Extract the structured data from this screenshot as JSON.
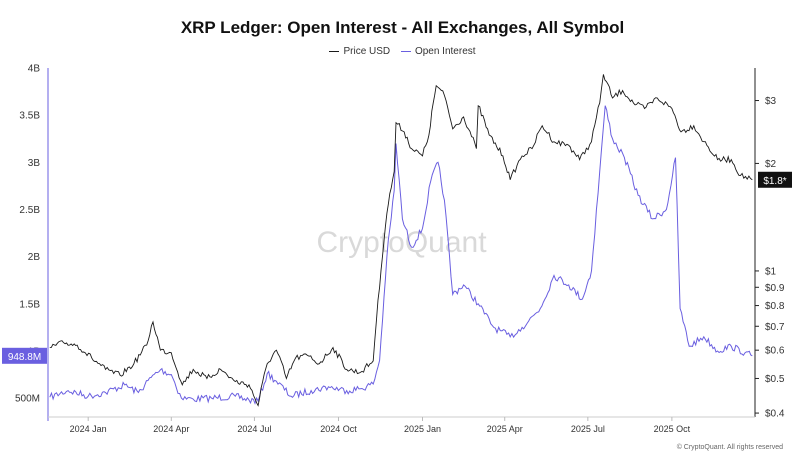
{
  "chart_data": {
    "type": "line",
    "title": "XRP Ledger: Open Interest - All Exchanges, All Symbol",
    "watermark": "CryptoQuant",
    "copyright": "© CryptoQuant. All rights reserved",
    "x_tick_labels": [
      "2024 Jan",
      "2024 Apr",
      "2024 Jul",
      "2024 Oct",
      "2025 Jan",
      "2025 Apr",
      "2025 Jul",
      "2025 Oct"
    ],
    "left_axis": {
      "ticks": [
        "500M",
        "1B",
        "1.5B",
        "2B",
        "2.5B",
        "3B",
        "3.5B",
        "4B"
      ],
      "ylim": [
        300000000,
        4000000000
      ]
    },
    "right_axis": {
      "scale": "log",
      "ticks": [
        "$0.4",
        "$0.5",
        "$0.6",
        "$0.7",
        "$0.8",
        "$0.9",
        "$1",
        "$2",
        "$3"
      ],
      "ylim": [
        0.39,
        3.7
      ]
    },
    "current_labels": {
      "open_interest": "948.8M",
      "price": "$1.8*"
    },
    "colors": {
      "price": "#1a1a1a",
      "open_interest": "#6a5fe0"
    },
    "series": [
      {
        "name": "Price USD",
        "axis": "right",
        "points": [
          [
            "2023-11-20",
            0.61
          ],
          [
            "2023-12-05",
            0.63
          ],
          [
            "2023-12-20",
            0.62
          ],
          [
            "2024-01-05",
            0.57
          ],
          [
            "2024-01-20",
            0.53
          ],
          [
            "2024-02-05",
            0.51
          ],
          [
            "2024-02-20",
            0.55
          ],
          [
            "2024-03-05",
            0.62
          ],
          [
            "2024-03-12",
            0.72
          ],
          [
            "2024-03-20",
            0.6
          ],
          [
            "2024-04-01",
            0.59
          ],
          [
            "2024-04-13",
            0.48
          ],
          [
            "2024-04-25",
            0.53
          ],
          [
            "2024-05-10",
            0.5
          ],
          [
            "2024-05-25",
            0.53
          ],
          [
            "2024-06-10",
            0.49
          ],
          [
            "2024-06-25",
            0.48
          ],
          [
            "2024-07-05",
            0.42
          ],
          [
            "2024-07-15",
            0.55
          ],
          [
            "2024-07-25",
            0.6
          ],
          [
            "2024-08-05",
            0.5
          ],
          [
            "2024-08-15",
            0.57
          ],
          [
            "2024-08-28",
            0.58
          ],
          [
            "2024-09-10",
            0.55
          ],
          [
            "2024-09-25",
            0.61
          ],
          [
            "2024-10-10",
            0.53
          ],
          [
            "2024-10-25",
            0.52
          ],
          [
            "2024-11-08",
            0.56
          ],
          [
            "2024-11-15",
            0.9
          ],
          [
            "2024-11-23",
            1.45
          ],
          [
            "2024-12-01",
            1.9
          ],
          [
            "2024-12-03",
            2.6
          ],
          [
            "2024-12-12",
            2.45
          ],
          [
            "2024-12-20",
            2.2
          ],
          [
            "2025-01-01",
            2.1
          ],
          [
            "2025-01-08",
            2.4
          ],
          [
            "2025-01-16",
            3.3
          ],
          [
            "2025-01-25",
            3.1
          ],
          [
            "2025-02-03",
            2.5
          ],
          [
            "2025-02-15",
            2.7
          ],
          [
            "2025-03-01",
            2.2
          ],
          [
            "2025-03-03",
            2.9
          ],
          [
            "2025-03-15",
            2.4
          ],
          [
            "2025-03-30",
            2.1
          ],
          [
            "2025-04-07",
            1.8
          ],
          [
            "2025-04-20",
            2.1
          ],
          [
            "2025-05-01",
            2.2
          ],
          [
            "2025-05-12",
            2.55
          ],
          [
            "2025-05-25",
            2.3
          ],
          [
            "2025-06-10",
            2.25
          ],
          [
            "2025-06-22",
            2.05
          ],
          [
            "2025-07-05",
            2.3
          ],
          [
            "2025-07-14",
            2.95
          ],
          [
            "2025-07-18",
            3.55
          ],
          [
            "2025-07-28",
            3.05
          ],
          [
            "2025-08-08",
            3.2
          ],
          [
            "2025-08-20",
            2.95
          ],
          [
            "2025-09-01",
            2.85
          ],
          [
            "2025-09-15",
            3.05
          ],
          [
            "2025-10-01",
            2.85
          ],
          [
            "2025-10-11",
            2.45
          ],
          [
            "2025-10-25",
            2.55
          ],
          [
            "2025-11-05",
            2.3
          ],
          [
            "2025-11-20",
            2.05
          ],
          [
            "2025-12-05",
            2.05
          ],
          [
            "2025-12-15",
            1.85
          ],
          [
            "2025-12-28",
            1.8
          ]
        ]
      },
      {
        "name": "Open Interest",
        "axis": "left",
        "points": [
          [
            "2023-11-20",
            510000000
          ],
          [
            "2023-12-10",
            580000000
          ],
          [
            "2024-01-01",
            520000000
          ],
          [
            "2024-01-20",
            560000000
          ],
          [
            "2024-02-10",
            640000000
          ],
          [
            "2024-02-25",
            560000000
          ],
          [
            "2024-03-10",
            720000000
          ],
          [
            "2024-03-20",
            800000000
          ],
          [
            "2024-04-01",
            750000000
          ],
          [
            "2024-04-12",
            500000000
          ],
          [
            "2024-04-25",
            490000000
          ],
          [
            "2024-05-15",
            500000000
          ],
          [
            "2024-06-10",
            520000000
          ],
          [
            "2024-06-25",
            480000000
          ],
          [
            "2024-07-05",
            470000000
          ],
          [
            "2024-07-15",
            760000000
          ],
          [
            "2024-07-25",
            680000000
          ],
          [
            "2024-08-10",
            520000000
          ],
          [
            "2024-09-01",
            580000000
          ],
          [
            "2024-09-20",
            620000000
          ],
          [
            "2024-10-10",
            580000000
          ],
          [
            "2024-10-25",
            600000000
          ],
          [
            "2024-11-08",
            650000000
          ],
          [
            "2024-11-15",
            900000000
          ],
          [
            "2024-11-23",
            2000000000
          ],
          [
            "2024-12-01",
            2700000000
          ],
          [
            "2024-12-03",
            3200000000
          ],
          [
            "2024-12-10",
            2400000000
          ],
          [
            "2024-12-20",
            2100000000
          ],
          [
            "2025-01-01",
            2300000000
          ],
          [
            "2025-01-10",
            2800000000
          ],
          [
            "2025-01-18",
            3000000000
          ],
          [
            "2025-01-25",
            2600000000
          ],
          [
            "2025-02-03",
            1600000000
          ],
          [
            "2025-02-15",
            1700000000
          ],
          [
            "2025-03-03",
            1500000000
          ],
          [
            "2025-03-20",
            1250000000
          ],
          [
            "2025-04-07",
            1150000000
          ],
          [
            "2025-04-20",
            1250000000
          ],
          [
            "2025-05-10",
            1450000000
          ],
          [
            "2025-05-25",
            1800000000
          ],
          [
            "2025-06-10",
            1700000000
          ],
          [
            "2025-06-25",
            1550000000
          ],
          [
            "2025-07-05",
            1850000000
          ],
          [
            "2025-07-14",
            2900000000
          ],
          [
            "2025-07-20",
            3600000000
          ],
          [
            "2025-07-28",
            3250000000
          ],
          [
            "2025-08-10",
            3050000000
          ],
          [
            "2025-08-25",
            2650000000
          ],
          [
            "2025-09-10",
            2400000000
          ],
          [
            "2025-09-25",
            2500000000
          ],
          [
            "2025-10-05",
            3050000000
          ],
          [
            "2025-10-10",
            1450000000
          ],
          [
            "2025-10-20",
            1050000000
          ],
          [
            "2025-11-05",
            1150000000
          ],
          [
            "2025-11-20",
            1000000000
          ],
          [
            "2025-12-05",
            1050000000
          ],
          [
            "2025-12-20",
            980000000
          ],
          [
            "2025-12-28",
            948800000
          ]
        ]
      }
    ],
    "legend_placement": "top-center",
    "grid": false
  }
}
